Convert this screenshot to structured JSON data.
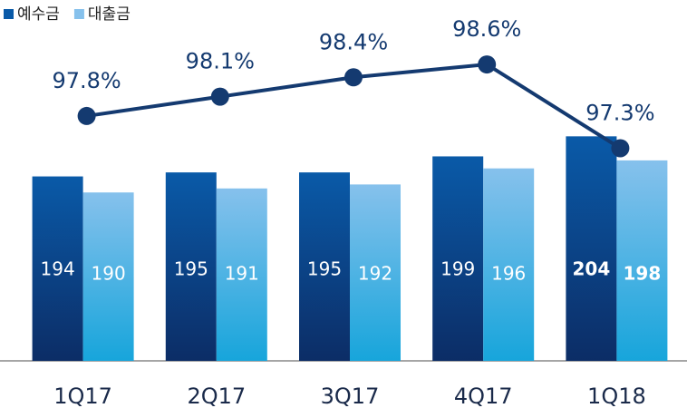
{
  "chart_data": {
    "type": "bar",
    "categories": [
      "1Q17",
      "2Q17",
      "3Q17",
      "4Q17",
      "1Q18"
    ],
    "series": [
      {
        "name": "예수금",
        "color": "#0a5aa8",
        "values": [
          194,
          195,
          195,
          199,
          204
        ]
      },
      {
        "name": "대출금",
        "color": "#86c1ec",
        "values": [
          190,
          191,
          192,
          196,
          198
        ]
      },
      {
        "type": "line",
        "axis": "y2",
        "color": "#143a70",
        "values": [
          97.8,
          98.1,
          98.4,
          98.6,
          97.3
        ],
        "value_labels": [
          "97.8%",
          "98.1%",
          "98.4%",
          "98.6%",
          "97.3%"
        ]
      }
    ],
    "ylim": [
      148,
      238
    ],
    "y2lim": [
      94,
      99.6
    ],
    "legend": "top-left"
  }
}
